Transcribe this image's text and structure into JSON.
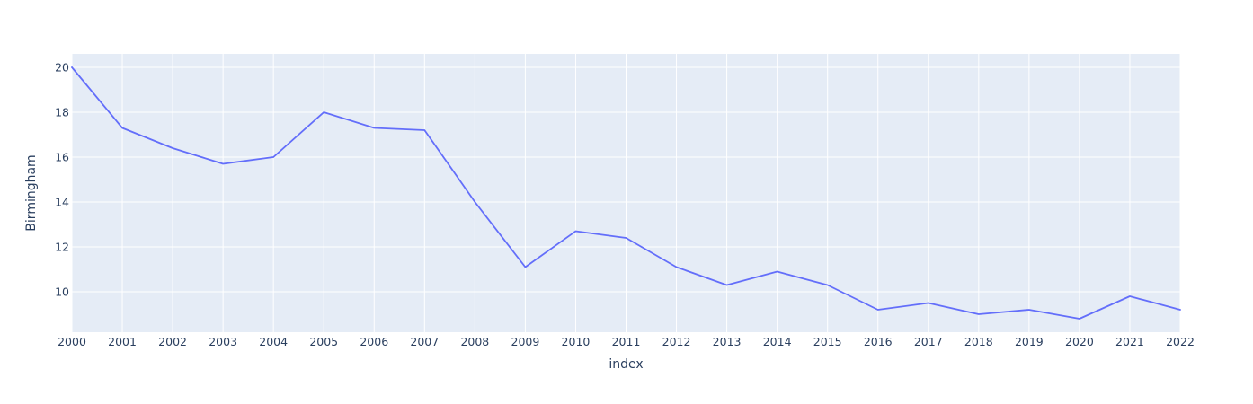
{
  "chart_data": {
    "type": "line",
    "x": [
      2000,
      2001,
      2002,
      2003,
      2004,
      2005,
      2006,
      2007,
      2008,
      2009,
      2010,
      2011,
      2012,
      2013,
      2014,
      2015,
      2016,
      2017,
      2018,
      2019,
      2020,
      2021,
      2022
    ],
    "series": [
      {
        "values": [
          20.0,
          17.3,
          16.4,
          15.7,
          16.0,
          18.0,
          17.3,
          17.2,
          14.0,
          11.1,
          12.7,
          12.4,
          11.1,
          10.3,
          10.9,
          10.3,
          9.2,
          9.5,
          9.0,
          9.2,
          8.8,
          9.8,
          9.2
        ],
        "color": "#636efa"
      }
    ],
    "xlabel": "index",
    "ylabel": "Birmingham",
    "xlim": [
      2000,
      2022
    ],
    "ylim": [
      8.2,
      20.6
    ],
    "yticks": [
      10,
      12,
      14,
      16,
      18,
      20
    ],
    "grid": true,
    "plot_background": "#e5ecf6"
  }
}
